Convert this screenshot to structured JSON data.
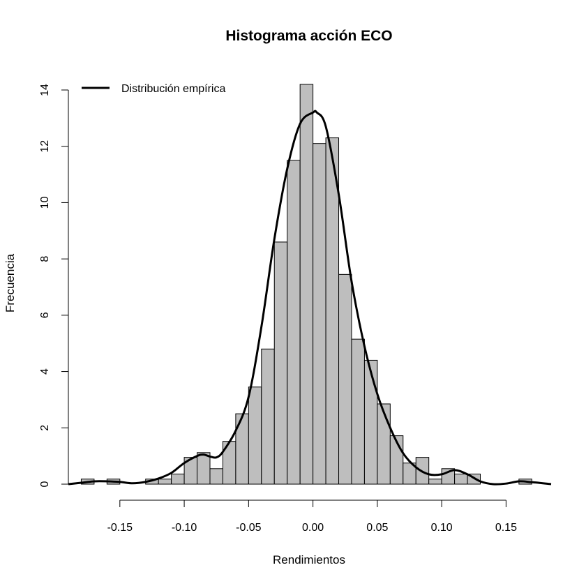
{
  "chart_data": {
    "type": "bar",
    "title": "Histograma acción ECO",
    "xlabel": "Rendimientos",
    "ylabel": "Frecuencia",
    "bin_width": 0.01,
    "bins": [
      {
        "x0": -0.18,
        "x1": -0.17,
        "value": 0.18
      },
      {
        "x0": -0.17,
        "x1": -0.16,
        "value": 0.0
      },
      {
        "x0": -0.16,
        "x1": -0.15,
        "value": 0.18
      },
      {
        "x0": -0.15,
        "x1": -0.14,
        "value": 0.0
      },
      {
        "x0": -0.14,
        "x1": -0.13,
        "value": 0.0
      },
      {
        "x0": -0.13,
        "x1": -0.12,
        "value": 0.18
      },
      {
        "x0": -0.12,
        "x1": -0.11,
        "value": 0.18
      },
      {
        "x0": -0.11,
        "x1": -0.1,
        "value": 0.36
      },
      {
        "x0": -0.1,
        "x1": -0.09,
        "value": 0.95
      },
      {
        "x0": -0.09,
        "x1": -0.08,
        "value": 1.12
      },
      {
        "x0": -0.08,
        "x1": -0.07,
        "value": 0.55
      },
      {
        "x0": -0.07,
        "x1": -0.06,
        "value": 1.52
      },
      {
        "x0": -0.06,
        "x1": -0.05,
        "value": 2.5
      },
      {
        "x0": -0.05,
        "x1": -0.04,
        "value": 3.45
      },
      {
        "x0": -0.04,
        "x1": -0.03,
        "value": 4.8
      },
      {
        "x0": -0.03,
        "x1": -0.02,
        "value": 8.6
      },
      {
        "x0": -0.02,
        "x1": -0.01,
        "value": 11.5
      },
      {
        "x0": -0.01,
        "x1": 0.0,
        "value": 14.2
      },
      {
        "x0": 0.0,
        "x1": 0.01,
        "value": 12.1
      },
      {
        "x0": 0.01,
        "x1": 0.02,
        "value": 12.3
      },
      {
        "x0": 0.02,
        "x1": 0.03,
        "value": 7.45
      },
      {
        "x0": 0.03,
        "x1": 0.04,
        "value": 5.15
      },
      {
        "x0": 0.04,
        "x1": 0.05,
        "value": 4.4
      },
      {
        "x0": 0.05,
        "x1": 0.06,
        "value": 2.85
      },
      {
        "x0": 0.06,
        "x1": 0.07,
        "value": 1.72
      },
      {
        "x0": 0.07,
        "x1": 0.08,
        "value": 0.75
      },
      {
        "x0": 0.08,
        "x1": 0.09,
        "value": 0.95
      },
      {
        "x0": 0.09,
        "x1": 0.1,
        "value": 0.18
      },
      {
        "x0": 0.1,
        "x1": 0.11,
        "value": 0.55
      },
      {
        "x0": 0.11,
        "x1": 0.12,
        "value": 0.36
      },
      {
        "x0": 0.12,
        "x1": 0.13,
        "value": 0.36
      },
      {
        "x0": 0.13,
        "x1": 0.14,
        "value": 0.0
      },
      {
        "x0": 0.14,
        "x1": 0.15,
        "value": 0.0
      },
      {
        "x0": 0.15,
        "x1": 0.16,
        "value": 0.0
      },
      {
        "x0": 0.16,
        "x1": 0.17,
        "value": 0.18
      }
    ],
    "density_curve": {
      "name": "Distribución empírica",
      "x": [
        -0.19,
        -0.18,
        -0.17,
        -0.16,
        -0.15,
        -0.14,
        -0.13,
        -0.12,
        -0.11,
        -0.1,
        -0.09,
        -0.085,
        -0.08,
        -0.075,
        -0.07,
        -0.06,
        -0.05,
        -0.04,
        -0.03,
        -0.02,
        -0.01,
        0.0,
        0.003,
        0.01,
        0.02,
        0.03,
        0.04,
        0.05,
        0.06,
        0.07,
        0.08,
        0.09,
        0.1,
        0.11,
        0.12,
        0.13,
        0.14,
        0.15,
        0.16,
        0.17,
        0.185
      ],
      "y": [
        0.0,
        0.05,
        0.1,
        0.1,
        0.08,
        0.03,
        0.08,
        0.2,
        0.4,
        0.75,
        1.0,
        1.05,
        0.98,
        0.95,
        1.15,
        1.9,
        3.1,
        5.6,
        8.7,
        11.2,
        12.8,
        13.2,
        13.2,
        12.7,
        10.3,
        7.2,
        4.9,
        3.2,
        2.0,
        1.1,
        0.6,
        0.35,
        0.35,
        0.5,
        0.35,
        0.1,
        0.0,
        0.02,
        0.1,
        0.07,
        0.0
      ]
    },
    "xlim": [
      -0.19,
      0.185
    ],
    "ylim": [
      0,
      14
    ],
    "x_ticks": [
      -0.15,
      -0.1,
      -0.05,
      0.0,
      0.05,
      0.1,
      0.15
    ],
    "x_tick_labels": [
      "-0.15",
      "-0.10",
      "-0.05",
      "0.00",
      "0.05",
      "0.10",
      "0.15"
    ],
    "y_ticks": [
      0,
      2,
      4,
      6,
      8,
      10,
      12,
      14
    ],
    "y_tick_labels": [
      "0",
      "2",
      "4",
      "6",
      "8",
      "10",
      "12",
      "14"
    ],
    "legend": {
      "position": "top-left",
      "entries": [
        "Distribución empírica"
      ]
    },
    "grid": false,
    "colors": {
      "bar_fill": "#bebebe",
      "bar_stroke": "#000000",
      "line": "#000000"
    }
  }
}
